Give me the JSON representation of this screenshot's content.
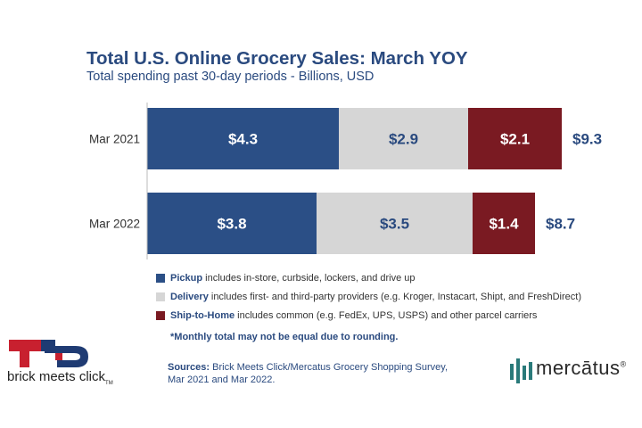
{
  "chart_data": {
    "type": "bar",
    "orientation": "horizontal",
    "stacked": true,
    "title": "Total U.S. Online Grocery Sales: March YOY",
    "subtitle": "Total spending past 30-day periods - Billions, USD",
    "categories": [
      "Mar 2021",
      "Mar 2022"
    ],
    "series": [
      {
        "name": "Pickup",
        "values": [
          4.3,
          3.8
        ],
        "labels": [
          "$4.3",
          "$3.8"
        ],
        "color": "#2b4f86",
        "label_color": "#ffffff"
      },
      {
        "name": "Delivery",
        "values": [
          2.9,
          3.5
        ],
        "labels": [
          "$2.9",
          "$3.5"
        ],
        "color": "#d6d6d6",
        "label_color": "#2a4a7f"
      },
      {
        "name": "Ship-to-Home",
        "values": [
          2.1,
          1.4
        ],
        "labels": [
          "$2.1",
          "$1.4"
        ],
        "color": "#7a1a22",
        "label_color": "#ffffff"
      }
    ],
    "totals": [
      "$9.3",
      "$8.7"
    ],
    "xlim": [
      0,
      9.3
    ],
    "grid": false,
    "legend_position": "bottom"
  },
  "legend": [
    {
      "bold": "Pickup",
      "text": " includes in-store, curbside, lockers, and drive up",
      "color": "#2b4f86"
    },
    {
      "bold": "Delivery",
      "text": " includes first- and third-party providers (e.g. Kroger, Instacart, Shipt, and FreshDirect)",
      "color": "#d6d6d6"
    },
    {
      "bold": "Ship-to-Home",
      "text": " includes common (e.g. FedEx, UPS, USPS) and other parcel carriers",
      "color": "#7a1a22"
    }
  ],
  "footnote": "*Monthly total may not be equal due to rounding.",
  "sources": {
    "label": "Sources:",
    "line1": " Brick Meets Click/Mercatus Grocery Shopping Survey,",
    "line2": "Mar 2021 and Mar 2022."
  },
  "logos": {
    "left": "brick meets click",
    "left_tm": "TM",
    "right": "mercātus",
    "right_reg": "®"
  }
}
